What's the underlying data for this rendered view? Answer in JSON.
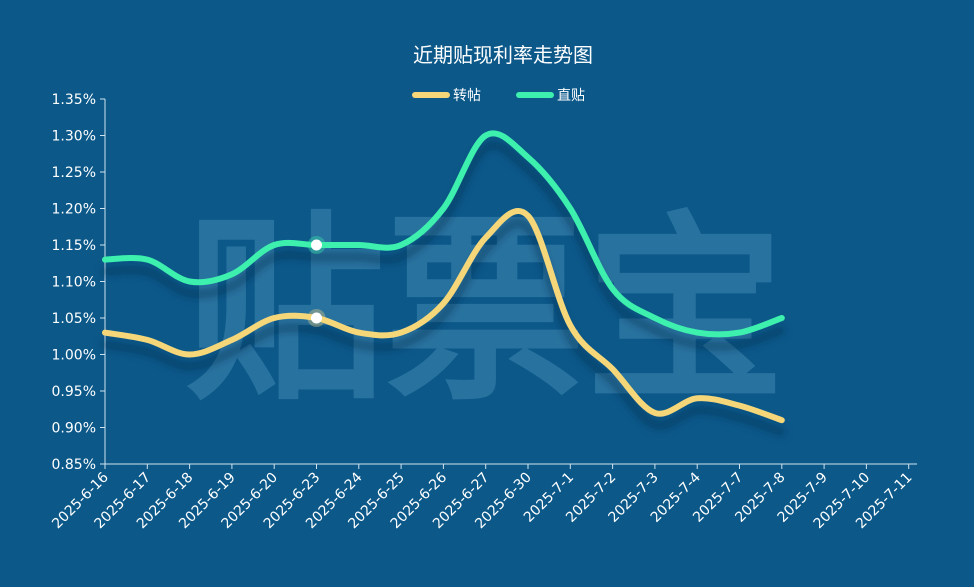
{
  "chart_data": {
    "type": "line",
    "title": "近期贴现利率走势图",
    "watermark": "贴票宝",
    "xlabel": "",
    "ylabel": "",
    "categories": [
      "2025-6-16",
      "2025-6-17",
      "2025-6-18",
      "2025-6-19",
      "2025-6-20",
      "2025-6-23",
      "2025-6-24",
      "2025-6-25",
      "2025-6-26",
      "2025-6-27",
      "2025-6-30",
      "2025-7-1",
      "2025-7-2",
      "2025-7-3",
      "2025-7-4",
      "2025-7-7",
      "2025-7-8",
      "2025-7-9",
      "2025-7-10",
      "2025-7-11"
    ],
    "series": [
      {
        "name": "转帖",
        "color": "#f5d77a",
        "values": [
          1.03,
          1.02,
          1.0,
          1.02,
          1.05,
          1.05,
          1.03,
          1.03,
          1.07,
          1.16,
          1.19,
          1.04,
          0.98,
          0.92,
          0.94,
          0.93,
          0.91,
          null,
          null,
          null
        ]
      },
      {
        "name": "直贴",
        "color": "#3df0ad",
        "values": [
          1.13,
          1.13,
          1.1,
          1.11,
          1.15,
          1.15,
          1.15,
          1.15,
          1.2,
          1.3,
          1.27,
          1.2,
          1.09,
          1.05,
          1.03,
          1.03,
          1.05,
          null,
          null,
          null
        ]
      }
    ],
    "highlight_index": 5,
    "yticks": [
      0.85,
      0.9,
      0.95,
      1.0,
      1.05,
      1.1,
      1.15,
      1.2,
      1.25,
      1.3,
      1.35
    ],
    "ylim": [
      0.85,
      1.35
    ],
    "y_unit": "%",
    "legend_position": "top-center",
    "grid": false,
    "colors": {
      "background": "#0b5889",
      "axis": "#cfe3ef",
      "text": "#ffffff"
    }
  }
}
